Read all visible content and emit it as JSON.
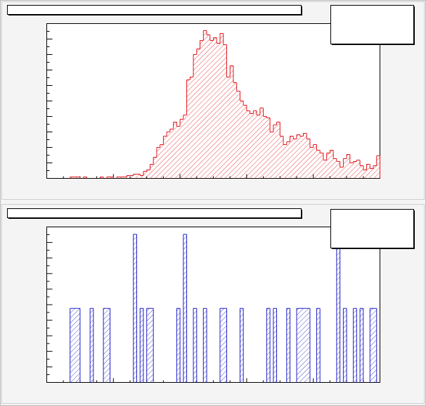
{
  "chart_data": [
    {
      "type": "histogram",
      "color": "#e0151b",
      "bins": [
        0,
        1,
        2,
        3,
        4,
        5,
        6,
        7,
        8,
        9,
        10,
        11,
        12,
        13,
        14,
        15,
        16,
        17,
        18,
        19,
        20,
        21,
        22,
        23,
        24,
        25,
        26,
        27,
        28,
        29,
        30,
        31,
        32,
        33,
        34,
        35,
        36,
        37,
        38,
        39,
        40,
        41,
        42,
        43,
        44,
        45,
        46,
        47,
        48,
        49,
        50,
        51,
        52,
        53,
        54,
        55,
        56,
        57,
        58,
        59,
        60,
        61,
        62,
        63,
        64,
        65,
        66,
        67,
        68,
        69,
        70,
        71,
        72,
        73,
        74,
        75,
        76,
        77,
        78,
        79,
        80,
        81,
        82,
        83,
        84,
        85,
        86,
        87,
        88,
        89,
        90,
        91,
        92,
        93,
        94,
        95,
        96,
        97,
        98,
        99,
        100
      ],
      "values": [
        0,
        0,
        0,
        0,
        0,
        0,
        0,
        1,
        1,
        1,
        0,
        1,
        0,
        0,
        0,
        0,
        1,
        0,
        1,
        1,
        0,
        1,
        1,
        1,
        2,
        2,
        3,
        3,
        2,
        5,
        6,
        10,
        15,
        22,
        24,
        30,
        33,
        35,
        40,
        37,
        42,
        45,
        70,
        72,
        88,
        92,
        98,
        105,
        102,
        98,
        100,
        96,
        103,
        95,
        72,
        80,
        68,
        62,
        55,
        52,
        48,
        46,
        48,
        45,
        50,
        44,
        43,
        33,
        38,
        40,
        30,
        24,
        26,
        30,
        28,
        31,
        30,
        32,
        28,
        22,
        24,
        20,
        18,
        13,
        18,
        20,
        14,
        12,
        8,
        14,
        17,
        11,
        12,
        13,
        9,
        6,
        10,
        7,
        9,
        16
      ],
      "xlim": [
        0,
        100
      ],
      "ylim": [
        0,
        110
      ]
    },
    {
      "type": "histogram",
      "color": "#1d1dc8",
      "bins": [
        0,
        1,
        2,
        3,
        4,
        5,
        6,
        7,
        8,
        9,
        10,
        11,
        12,
        13,
        14,
        15,
        16,
        17,
        18,
        19,
        20,
        21,
        22,
        23,
        24,
        25,
        26,
        27,
        28,
        29,
        30,
        31,
        32,
        33,
        34,
        35,
        36,
        37,
        38,
        39,
        40,
        41,
        42,
        43,
        44,
        45,
        46,
        47,
        48,
        49,
        50,
        51,
        52,
        53,
        54,
        55,
        56,
        57,
        58,
        59,
        60,
        61,
        62,
        63,
        64,
        65,
        66,
        67,
        68,
        69,
        70,
        71,
        72,
        73,
        74,
        75,
        76,
        77,
        78,
        79,
        80,
        81,
        82,
        83,
        84,
        85,
        86,
        87,
        88,
        89,
        90,
        91,
        92,
        93,
        94,
        95,
        96,
        97,
        98,
        99,
        100
      ],
      "values": [
        0,
        0,
        0,
        0,
        0,
        0,
        0,
        1,
        1,
        1,
        0,
        0,
        0,
        1,
        0,
        0,
        0,
        1,
        1,
        0,
        0,
        0,
        0,
        0,
        0,
        0,
        2,
        0,
        1,
        0,
        1,
        1,
        0,
        0,
        0,
        0,
        0,
        0,
        0,
        1,
        0,
        2,
        0,
        0,
        1,
        0,
        0,
        1,
        0,
        0,
        0,
        0,
        1,
        1,
        0,
        0,
        0,
        0,
        1,
        0,
        0,
        0,
        0,
        0,
        0,
        0,
        1,
        0,
        1,
        0,
        0,
        0,
        1,
        0,
        0,
        1,
        1,
        1,
        1,
        0,
        0,
        1,
        0,
        0,
        0,
        0,
        0,
        2,
        0,
        1,
        0,
        0,
        1,
        0,
        1,
        0,
        0,
        1,
        1,
        0
      ],
      "xlim": [
        0,
        100
      ],
      "ylim": [
        0,
        2.1
      ]
    }
  ]
}
